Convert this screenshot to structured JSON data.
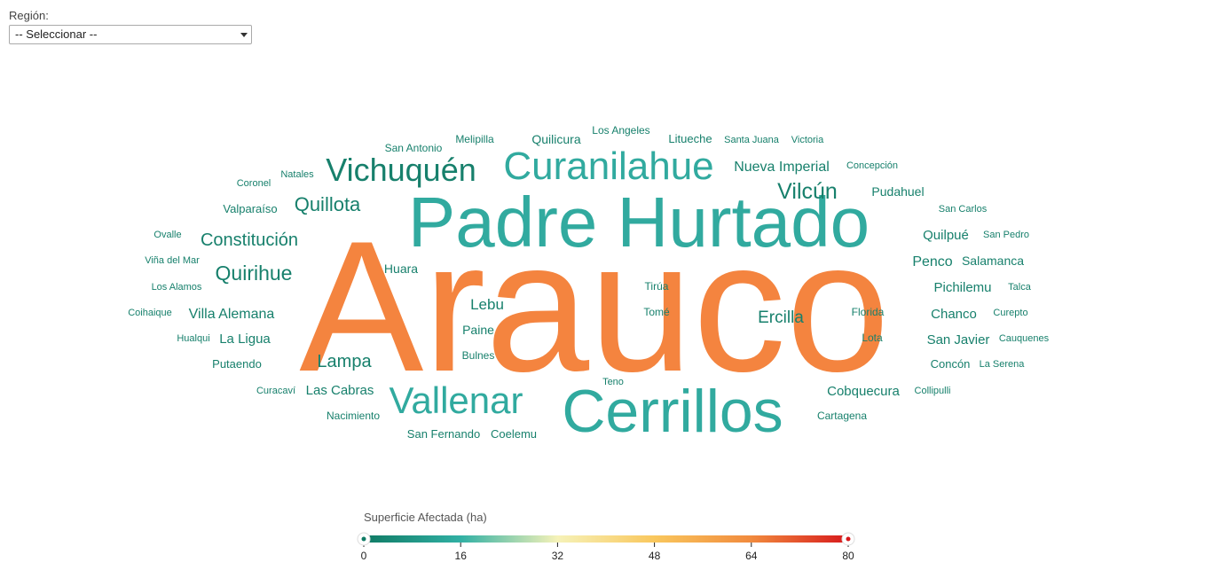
{
  "filter": {
    "label": "Región:",
    "selected": "-- Seleccionar --"
  },
  "legend": {
    "title": "Superficie Afectada (ha)",
    "ticks": [
      "0",
      "16",
      "32",
      "48",
      "64",
      "80"
    ],
    "min": 0,
    "max": 80,
    "gradient": [
      "#0f7a64",
      "#31b0a4",
      "#f6f2b8",
      "#f9c75d",
      "#f18a3d",
      "#d7191c"
    ]
  },
  "chart_data": {
    "type": "wordcloud",
    "title": "",
    "value_label": "Superficie Afectada (ha)",
    "colors": {
      "high": "#f4843f",
      "mid": "#31aa9f",
      "low": "#17806c"
    },
    "words": [
      {
        "text": "Arauco",
        "value": 68
      },
      {
        "text": "Padre Hurtado",
        "value": 32
      },
      {
        "text": "Cerrillos",
        "value": 30
      },
      {
        "text": "Curanilahue",
        "value": 22
      },
      {
        "text": "Vallenar",
        "value": 21
      },
      {
        "text": "Vichuquén",
        "value": 19
      },
      {
        "text": "Vilcún",
        "value": 13
      },
      {
        "text": "Quirihue",
        "value": 13
      },
      {
        "text": "Quillota",
        "value": 12
      },
      {
        "text": "Constitución",
        "value": 11
      },
      {
        "text": "Lampa",
        "value": 11
      },
      {
        "text": "Ercilla",
        "value": 11
      },
      {
        "text": "Lebu",
        "value": 10
      },
      {
        "text": "Nueva Imperial",
        "value": 9
      },
      {
        "text": "Villa Alemana",
        "value": 9
      },
      {
        "text": "Las Cabras",
        "value": 9
      },
      {
        "text": "Cobquecura",
        "value": 8
      },
      {
        "text": "Penco",
        "value": 8
      },
      {
        "text": "Quilpué",
        "value": 8
      },
      {
        "text": "Pichilemu",
        "value": 8
      },
      {
        "text": "Chanco",
        "value": 8
      },
      {
        "text": "San Javier",
        "value": 8
      },
      {
        "text": "La Ligua",
        "value": 8
      },
      {
        "text": "Quilicura",
        "value": 7
      },
      {
        "text": "Pudahuel",
        "value": 7
      },
      {
        "text": "Salamanca",
        "value": 7
      },
      {
        "text": "Huara",
        "value": 7
      },
      {
        "text": "Paine",
        "value": 7
      },
      {
        "text": "Concón",
        "value": 7
      },
      {
        "text": "San Fernando",
        "value": 6
      },
      {
        "text": "Coelemu",
        "value": 6
      },
      {
        "text": "Valparaíso",
        "value": 6
      },
      {
        "text": "Putaendo",
        "value": 6
      },
      {
        "text": "Litueche",
        "value": 6
      },
      {
        "text": "Nacimiento",
        "value": 6
      },
      {
        "text": "Cartagena",
        "value": 6
      },
      {
        "text": "Bulnes",
        "value": 6
      },
      {
        "text": "Tirúa",
        "value": 6
      },
      {
        "text": "Tomé",
        "value": 6
      },
      {
        "text": "Florida",
        "value": 6
      },
      {
        "text": "Lota",
        "value": 6
      },
      {
        "text": "San Antonio",
        "value": 6
      },
      {
        "text": "Melipilla",
        "value": 6
      },
      {
        "text": "Los Angeles",
        "value": 5
      },
      {
        "text": "Santa Juana",
        "value": 5
      },
      {
        "text": "Victoria",
        "value": 5
      },
      {
        "text": "Concepción",
        "value": 5
      },
      {
        "text": "Natales",
        "value": 5
      },
      {
        "text": "Coronel",
        "value": 5
      },
      {
        "text": "San Carlos",
        "value": 5
      },
      {
        "text": "San Pedro",
        "value": 5
      },
      {
        "text": "Ovalle",
        "value": 5
      },
      {
        "text": "Viña del Mar",
        "value": 5
      },
      {
        "text": "Los Alamos",
        "value": 5
      },
      {
        "text": "Coihaique",
        "value": 5
      },
      {
        "text": "Hualqui",
        "value": 5
      },
      {
        "text": "Curacaví",
        "value": 5
      },
      {
        "text": "Teno",
        "value": 5
      },
      {
        "text": "Talca",
        "value": 5
      },
      {
        "text": "Curepto",
        "value": 5
      },
      {
        "text": "Cauquenes",
        "value": 5
      },
      {
        "text": "La Serena",
        "value": 5
      },
      {
        "text": "Collipulli",
        "value": 5
      }
    ]
  }
}
